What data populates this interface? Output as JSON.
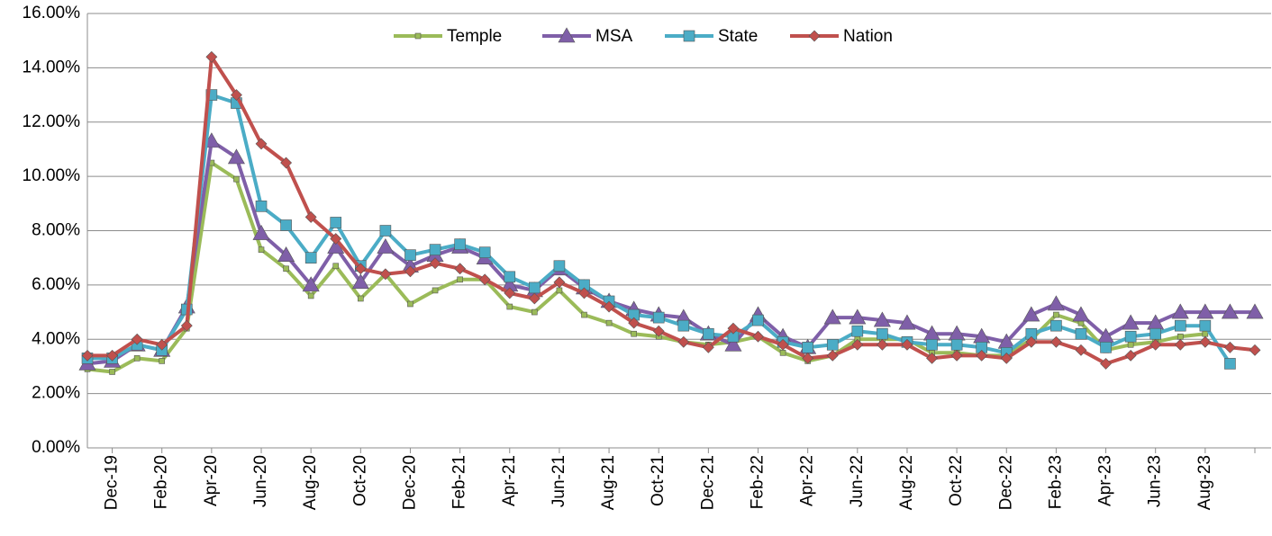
{
  "chart_data": {
    "type": "line",
    "categories": [
      null,
      "Dec-19",
      null,
      "Feb-20",
      null,
      "Apr-20",
      null,
      "Jun-20",
      null,
      "Aug-20",
      null,
      "Oct-20",
      null,
      "Dec-20",
      null,
      "Feb-21",
      null,
      "Apr-21",
      null,
      "Jun-21",
      null,
      "Aug-21",
      null,
      "Oct-21",
      null,
      "Dec-21",
      null,
      "Feb-22",
      null,
      "Apr-22",
      null,
      "Jun-22",
      null,
      "Aug-22",
      null,
      "Oct-22",
      null,
      "Dec-22",
      null,
      "Feb-23",
      null,
      "Apr-23",
      null,
      "Jun-23",
      null,
      "Aug-23",
      null,
      null
    ],
    "series": [
      {
        "name": "Temple",
        "color": "#9bbb59",
        "marker": "small-square",
        "values": [
          2.9,
          2.8,
          3.3,
          3.2,
          4.4,
          10.5,
          9.9,
          7.3,
          6.6,
          5.6,
          6.7,
          5.5,
          6.4,
          5.3,
          5.8,
          6.2,
          6.2,
          5.2,
          5.0,
          5.8,
          4.9,
          4.6,
          4.2,
          4.1,
          3.9,
          3.8,
          3.9,
          4.1,
          3.5,
          3.2,
          3.4,
          4.0,
          4.0,
          4.0,
          3.5,
          3.5,
          3.4,
          3.4,
          4.0,
          4.9,
          4.6,
          3.6,
          3.8,
          3.9,
          4.1,
          4.2,
          null,
          null
        ]
      },
      {
        "name": "MSA",
        "color": "#7f5fa8",
        "marker": "triangle",
        "values": [
          3.1,
          3.2,
          3.8,
          3.6,
          5.2,
          11.3,
          10.7,
          7.9,
          7.1,
          6.0,
          7.4,
          6.1,
          7.4,
          6.7,
          7.1,
          7.4,
          7.0,
          6.0,
          5.8,
          6.6,
          5.9,
          5.4,
          5.1,
          4.9,
          4.8,
          4.2,
          3.8,
          4.9,
          4.1,
          3.7,
          4.8,
          4.8,
          4.7,
          4.6,
          4.2,
          4.2,
          4.1,
          3.9,
          4.9,
          5.3,
          4.9,
          4.1,
          4.6,
          4.6,
          5.0,
          5.0,
          5.0,
          5.0
        ]
      },
      {
        "name": "State",
        "color": "#4bacc6",
        "marker": "square",
        "values": [
          3.3,
          3.3,
          3.8,
          3.6,
          5.1,
          13.0,
          12.7,
          8.9,
          8.2,
          7.0,
          8.3,
          6.7,
          8.0,
          7.1,
          7.3,
          7.5,
          7.2,
          6.3,
          5.9,
          6.7,
          6.0,
          5.4,
          4.9,
          4.8,
          4.5,
          4.2,
          4.1,
          4.7,
          3.9,
          3.7,
          3.8,
          4.3,
          4.2,
          3.9,
          3.8,
          3.8,
          3.7,
          3.5,
          4.2,
          4.5,
          4.2,
          3.7,
          4.1,
          4.2,
          4.5,
          4.5,
          3.1,
          null
        ]
      },
      {
        "name": "Nation",
        "color": "#c0504d",
        "marker": "diamond",
        "values": [
          3.4,
          3.4,
          4.0,
          3.8,
          4.5,
          14.4,
          13.0,
          11.2,
          10.5,
          8.5,
          7.7,
          6.6,
          6.4,
          6.5,
          6.8,
          6.6,
          6.2,
          5.7,
          5.5,
          6.1,
          5.7,
          5.2,
          4.6,
          4.3,
          3.9,
          3.7,
          4.4,
          4.1,
          3.8,
          3.3,
          3.4,
          3.8,
          3.8,
          3.8,
          3.3,
          3.4,
          3.4,
          3.3,
          3.9,
          3.9,
          3.6,
          3.1,
          3.4,
          3.8,
          3.8,
          3.9,
          3.7,
          3.6
        ]
      }
    ],
    "ylim": [
      0,
      16
    ],
    "yticks": [
      {
        "value": 0,
        "label": "0.00%"
      },
      {
        "value": 2,
        "label": "2.00%"
      },
      {
        "value": 4,
        "label": "4.00%"
      },
      {
        "value": 6,
        "label": "6.00%"
      },
      {
        "value": 8,
        "label": "8.00%"
      },
      {
        "value": 10,
        "label": "10.00%"
      },
      {
        "value": 12,
        "label": "12.00%"
      },
      {
        "value": 14,
        "label": "14.00%"
      },
      {
        "value": 16,
        "label": "16.00%"
      }
    ],
    "grid": true,
    "legend": "top"
  }
}
